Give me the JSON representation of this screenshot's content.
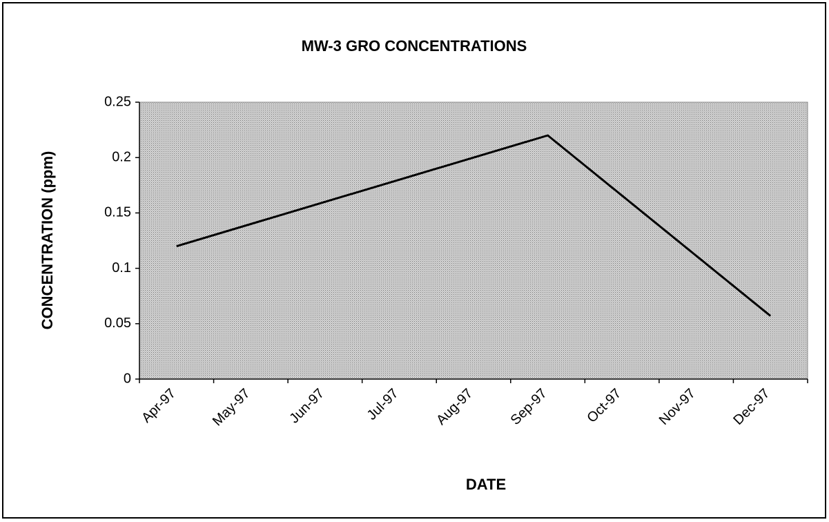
{
  "chart_data": {
    "type": "line",
    "title": "MW-3 GRO CONCENTRATIONS",
    "x_label": "DATE",
    "y_label": "CONCENTRATION (ppm)",
    "categories": [
      "Apr-97",
      "May-97",
      "Jun-97",
      "Jul-97",
      "Aug-97",
      "Sep-97",
      "Oct-97",
      "Nov-97",
      "Dec-97"
    ],
    "x": [
      "Apr-97",
      "Sep-97",
      "Dec-97"
    ],
    "values": [
      0.12,
      0.22,
      0.057
    ],
    "color": "#000000",
    "ylim": [
      0,
      0.25
    ],
    "yticks": [
      0,
      0.05,
      0.1,
      0.15,
      0.2,
      0.25
    ],
    "grid": false
  }
}
